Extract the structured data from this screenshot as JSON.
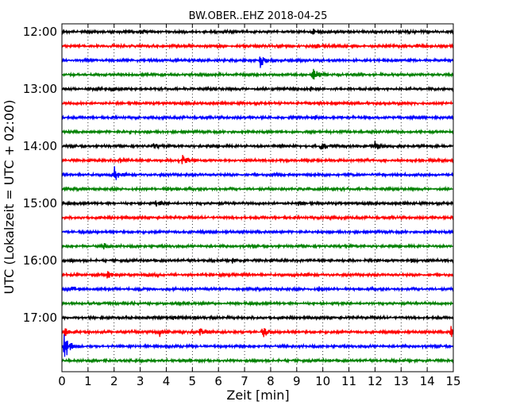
{
  "chart_data": {
    "type": "line",
    "title": "BW.OBER..EHZ 2018-04-25",
    "xlabel": "Zeit  [min]",
    "ylabel": "UTC (Lokalzeit = UTC + 02:00)",
    "xlim": [
      0,
      15
    ],
    "x_ticks": [
      "0",
      "1",
      "2",
      "3",
      "4",
      "5",
      "6",
      "7",
      "8",
      "9",
      "10",
      "11",
      "12",
      "13",
      "14",
      "15"
    ],
    "y_ticks": [
      "12:00",
      "13:00",
      "14:00",
      "15:00",
      "16:00",
      "17:00"
    ],
    "grid": "vertical-dotted",
    "trace_colors": [
      "#000000",
      "#ff0000",
      "#0000ff",
      "#008000"
    ],
    "series": [
      {
        "start": "12:00",
        "events": [
          {
            "min": 3.0,
            "amp": 1.3
          },
          {
            "min": 9.6,
            "amp": 1.2
          },
          {
            "min": 13.2,
            "amp": 1.2
          }
        ]
      },
      {
        "start": "12:15",
        "events": [
          {
            "min": 9.7,
            "amp": 1.6
          },
          {
            "min": 13.6,
            "amp": 1.3
          }
        ]
      },
      {
        "start": "12:30",
        "events": [
          {
            "min": 7.6,
            "amp": 4.0
          }
        ]
      },
      {
        "start": "12:45",
        "events": [
          {
            "min": 9.6,
            "amp": 4.0
          }
        ]
      },
      {
        "start": "13:00",
        "events": [
          {
            "min": 1.9,
            "amp": 1.2
          },
          {
            "min": 9.5,
            "amp": 1.4
          }
        ]
      },
      {
        "start": "13:15",
        "events": []
      },
      {
        "start": "13:30",
        "events": [
          {
            "min": 9.6,
            "amp": 1.3
          }
        ]
      },
      {
        "start": "13:45",
        "events": [
          {
            "min": 2.6,
            "amp": 1.2
          }
        ]
      },
      {
        "start": "14:00",
        "events": [
          {
            "min": 9.9,
            "amp": 2.5
          },
          {
            "min": 12.0,
            "amp": 2.5
          },
          {
            "min": 3.5,
            "amp": 1.3
          }
        ]
      },
      {
        "start": "14:15",
        "events": [
          {
            "min": 4.5,
            "amp": 5.5
          },
          {
            "min": 2.2,
            "amp": 1.5
          }
        ]
      },
      {
        "start": "14:30",
        "events": [
          {
            "min": 2.0,
            "amp": 4.8
          }
        ]
      },
      {
        "start": "14:45",
        "events": [
          {
            "min": 4.0,
            "amp": 1.2
          }
        ]
      },
      {
        "start": "15:00",
        "events": [
          {
            "min": 3.6,
            "amp": 1.2
          },
          {
            "min": 9.0,
            "amp": 1.2
          }
        ]
      },
      {
        "start": "15:15",
        "events": [
          {
            "min": 10.0,
            "amp": 1.3
          }
        ]
      },
      {
        "start": "15:30",
        "events": [
          {
            "min": 9.7,
            "amp": 1.2
          }
        ]
      },
      {
        "start": "15:45",
        "events": [
          {
            "min": 1.6,
            "amp": 1.5
          }
        ]
      },
      {
        "start": "16:00",
        "events": [
          {
            "min": 6.5,
            "amp": 1.3
          },
          {
            "min": 13.4,
            "amp": 1.3
          }
        ]
      },
      {
        "start": "16:15",
        "events": [
          {
            "min": 1.7,
            "amp": 2.2
          },
          {
            "min": 3.2,
            "amp": 1.3
          },
          {
            "min": 9.2,
            "amp": 1.3
          }
        ]
      },
      {
        "start": "16:30",
        "events": [
          {
            "min": 9.8,
            "amp": 1.5
          },
          {
            "min": 0.4,
            "amp": 1.3
          }
        ]
      },
      {
        "start": "16:45",
        "events": []
      },
      {
        "start": "17:00",
        "events": [
          {
            "min": 4.2,
            "amp": 1.2
          }
        ]
      },
      {
        "start": "17:15",
        "events": [
          {
            "min": 3.7,
            "amp": 2.8
          },
          {
            "min": 5.3,
            "amp": 2.8
          },
          {
            "min": 7.7,
            "amp": 2.8
          },
          {
            "min": 14.9,
            "amp": 4.5
          },
          {
            "min": 0.1,
            "amp": 2.5
          }
        ]
      },
      {
        "start": "17:30",
        "events": [
          {
            "min": 0.08,
            "amp": 9.0
          }
        ]
      },
      {
        "start": "17:45",
        "events": []
      }
    ]
  }
}
